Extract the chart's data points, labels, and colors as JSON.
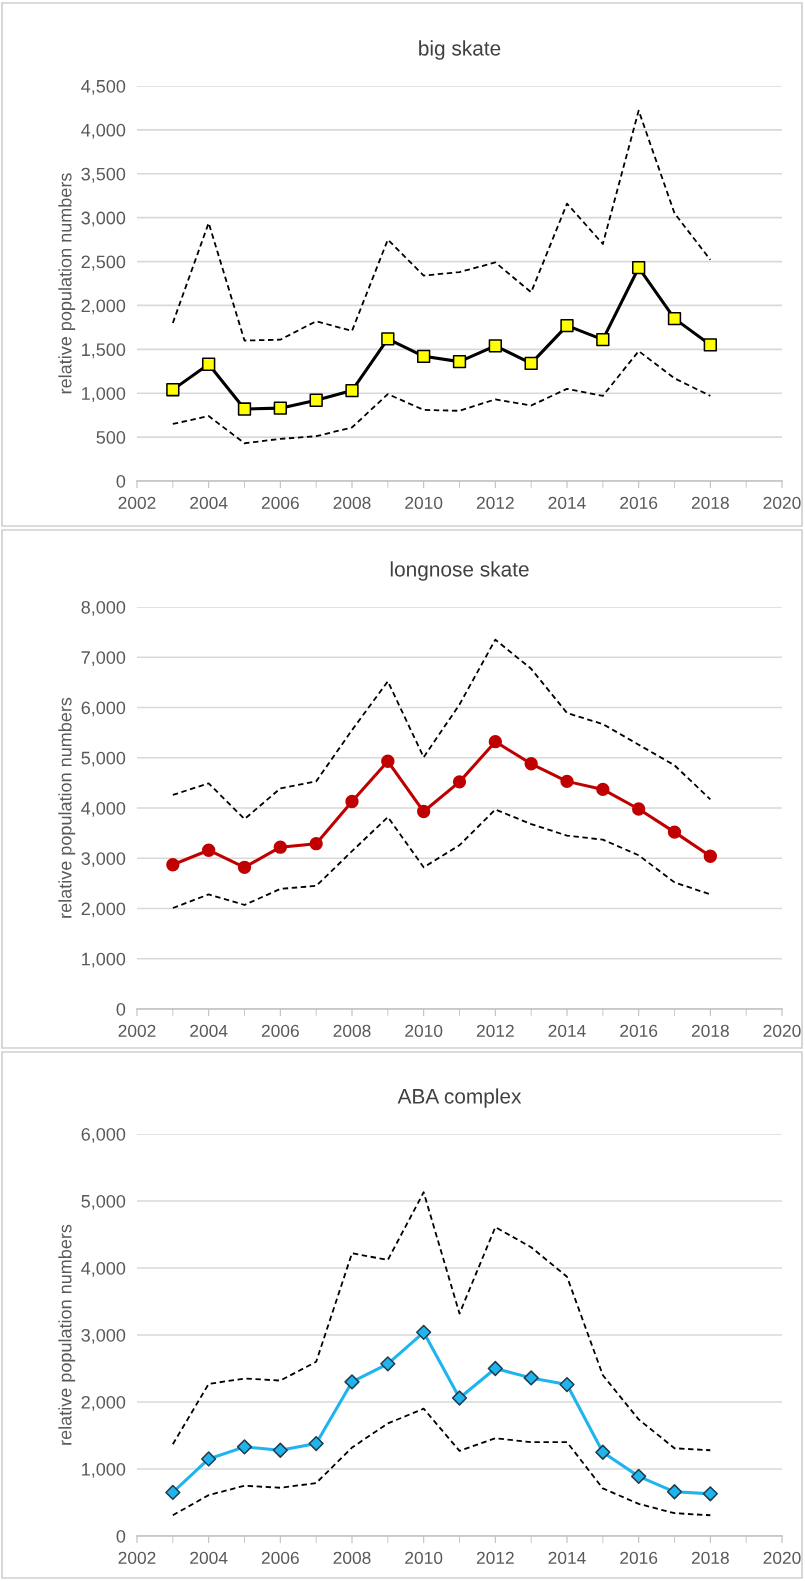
{
  "chart_data": [
    {
      "type": "line",
      "title": "big skate",
      "ylabel": "relative population numbers",
      "x": [
        2003,
        2004,
        2005,
        2006,
        2007,
        2008,
        2009,
        2010,
        2011,
        2012,
        2013,
        2014,
        2015,
        2016,
        2017,
        2018
      ],
      "series": [
        {
          "color": "#000000",
          "marker": "square",
          "line_style": "solid",
          "colors": [
            "#ffff00",
            "#ffff00",
            "#ffff00",
            "#ffff00",
            "#ffff00",
            "#ffff00",
            "#ffff00",
            "#ffff00",
            "#ffff00",
            "#ffff00",
            "#ffff00",
            "#ffff00",
            "#ffff00",
            "#ffff00",
            "#ffff00",
            "#ffff00"
          ],
          "values": [
            1040,
            1330,
            820,
            830,
            920,
            1030,
            1620,
            1420,
            1360,
            1540,
            1340,
            1770,
            1610,
            2430,
            1850,
            1550
          ]
        },
        {
          "color": "#000000",
          "marker": "none",
          "line_style": "dashed",
          "values": [
            1800,
            2940,
            1600,
            1610,
            1820,
            1710,
            2750,
            2340,
            2380,
            2490,
            2150,
            3160,
            2700,
            4220,
            3050,
            2520
          ]
        },
        {
          "color": "#000000",
          "marker": "none",
          "line_style": "dashed",
          "values": [
            650,
            740,
            430,
            480,
            510,
            610,
            990,
            810,
            800,
            930,
            860,
            1050,
            970,
            1480,
            1170,
            970
          ]
        }
      ],
      "xlim": [
        2002,
        2020
      ],
      "xticks": [
        2002,
        2004,
        2006,
        2008,
        2010,
        2012,
        2014,
        2016,
        2018,
        2020
      ],
      "ylim": [
        0,
        4500
      ],
      "yticks": [
        0,
        500,
        {
          "value": 1000,
          "label": "1,000"
        },
        {
          "value": 1500,
          "label": "1,500"
        },
        {
          "value": 2000,
          "label": "2,000"
        },
        {
          "value": 2500,
          "label": "2,500"
        },
        {
          "value": 3000,
          "label": "3,000"
        },
        {
          "value": 3500,
          "label": "3,500"
        },
        {
          "value": 4000,
          "label": "4,000"
        },
        {
          "value": 4500,
          "label": "4,500"
        }
      ],
      "grid": "y",
      "legend": false
    },
    {
      "type": "line",
      "title": "longnose skate",
      "ylabel": "relative population numbers",
      "x": [
        2003,
        2004,
        2005,
        2006,
        2007,
        2008,
        2009,
        2010,
        2011,
        2012,
        2013,
        2014,
        2015,
        2016,
        2017,
        2018
      ],
      "series": [
        {
          "color": "#c00000",
          "marker": "circle",
          "line_style": "solid",
          "values": [
            2870,
            3160,
            2820,
            3220,
            3290,
            4130,
            4930,
            3930,
            4520,
            5320,
            4880,
            4530,
            4370,
            3980,
            3520,
            3040
          ]
        },
        {
          "color": "#000000",
          "marker": "none",
          "line_style": "dashed",
          "values": [
            4260,
            4490,
            3780,
            4390,
            4530,
            5550,
            6520,
            5010,
            6060,
            7350,
            6770,
            5890,
            5670,
            5260,
            4850,
            4170
          ]
        },
        {
          "color": "#000000",
          "marker": "none",
          "line_style": "dashed",
          "values": [
            2010,
            2280,
            2070,
            2390,
            2450,
            3140,
            3820,
            2820,
            3260,
            3970,
            3680,
            3450,
            3370,
            3060,
            2520,
            2280
          ]
        }
      ],
      "xlim": [
        2002,
        2020
      ],
      "xticks": [
        2002,
        2004,
        2006,
        2008,
        2010,
        2012,
        2014,
        2016,
        2018,
        2020
      ],
      "ylim": [
        0,
        8000
      ],
      "yticks": [
        0,
        {
          "value": 1000,
          "label": "1,000"
        },
        {
          "value": 2000,
          "label": "2,000"
        },
        {
          "value": 3000,
          "label": "3,000"
        },
        {
          "value": 4000,
          "label": "4,000"
        },
        {
          "value": 5000,
          "label": "5,000"
        },
        {
          "value": 6000,
          "label": "6,000"
        },
        {
          "value": 7000,
          "label": "7,000"
        },
        {
          "value": 8000,
          "label": "8,000"
        }
      ],
      "grid": "y",
      "legend": false
    },
    {
      "type": "line",
      "title": "ABA complex",
      "ylabel": "relative population numbers",
      "x": [
        2003,
        2004,
        2005,
        2006,
        2007,
        2008,
        2009,
        2010,
        2011,
        2012,
        2013,
        2014,
        2015,
        2016,
        2017,
        2018
      ],
      "series": [
        {
          "color": "#1fb4ee",
          "marker": "diamond",
          "line_style": "solid",
          "values": [
            650,
            1150,
            1330,
            1280,
            1380,
            2300,
            2570,
            3040,
            2060,
            2500,
            2360,
            2260,
            1250,
            890,
            660,
            630
          ]
        },
        {
          "color": "#000000",
          "marker": "none",
          "line_style": "dashed",
          "values": [
            1370,
            2270,
            2350,
            2320,
            2600,
            4220,
            4120,
            5130,
            3320,
            4610,
            4310,
            3870,
            2400,
            1740,
            1310,
            1280
          ]
        },
        {
          "color": "#000000",
          "marker": "none",
          "line_style": "dashed",
          "values": [
            310,
            610,
            750,
            720,
            790,
            1320,
            1680,
            1900,
            1270,
            1460,
            1400,
            1400,
            710,
            480,
            340,
            310
          ]
        }
      ],
      "xlim": [
        2002,
        2020
      ],
      "xticks": [
        2002,
        2004,
        2006,
        2008,
        2010,
        2012,
        2014,
        2016,
        2018,
        2020
      ],
      "ylim": [
        0,
        6000
      ],
      "yticks": [
        0,
        {
          "value": 1000,
          "label": "1,000"
        },
        {
          "value": 2000,
          "label": "2,000"
        },
        {
          "value": 3000,
          "label": "3,000"
        },
        {
          "value": 4000,
          "label": "4,000"
        },
        {
          "value": 5000,
          "label": "5,000"
        },
        {
          "value": 6000,
          "label": "6,000"
        }
      ],
      "grid": "y",
      "legend": false
    }
  ]
}
